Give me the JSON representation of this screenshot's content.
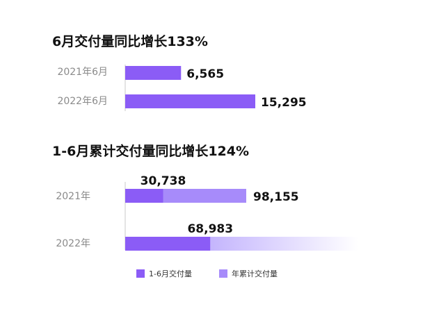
{
  "chart_data": [
    {
      "type": "bar",
      "orientation": "horizontal",
      "title": "6月交付量同比增长133%",
      "categories": [
        "2021年6月",
        "2022年6月"
      ],
      "values": [
        6565,
        15295
      ],
      "value_labels": [
        "6,565",
        "15,295"
      ],
      "color": "#8b5cf6"
    },
    {
      "type": "bar",
      "orientation": "horizontal",
      "title": "1-6月累计交付量同比增长124%",
      "categories": [
        "2021年",
        "2022年"
      ],
      "series": [
        {
          "name": "1-6月交付量",
          "values": [
            30738,
            68983
          ],
          "value_labels": [
            "30,738",
            "68,983"
          ],
          "color": "#8b5cf6"
        },
        {
          "name": "年累计交付量",
          "values": [
            98155,
            null
          ],
          "value_labels": [
            "98,155",
            ""
          ],
          "color": "#a78bfa"
        }
      ],
      "fade_color": "#c4b5fd",
      "legend_position": "bottom"
    }
  ]
}
